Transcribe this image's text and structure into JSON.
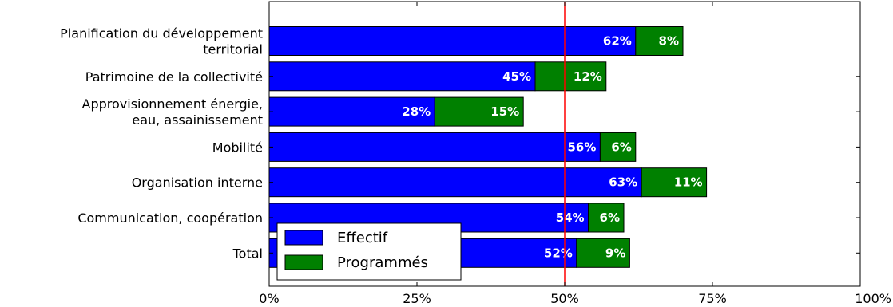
{
  "chart_data": {
    "type": "bar",
    "orientation": "horizontal",
    "stacked": true,
    "title": "",
    "xlabel": "",
    "ylabel": "",
    "xlim": [
      0,
      100
    ],
    "x_ticks": [
      "0%",
      "25%",
      "50%",
      "75%",
      "100%"
    ],
    "categories": [
      [
        "Planification du développement",
        "territorial"
      ],
      [
        "Patrimoine de la collectivité"
      ],
      [
        "Approvisionnement énergie,",
        "eau, assainissement"
      ],
      [
        "Mobilité"
      ],
      [
        "Organisation interne"
      ],
      [
        "Communication, coopération"
      ],
      [
        "Total"
      ]
    ],
    "series": [
      {
        "name": "Effectif",
        "color": "#0000ff",
        "values": [
          62,
          45,
          28,
          56,
          63,
          54,
          52
        ],
        "labels": [
          "62%",
          "45%",
          "28%",
          "56%",
          "63%",
          "54%",
          "52%"
        ]
      },
      {
        "name": "Programmés",
        "color": "#008000",
        "values": [
          8,
          12,
          15,
          6,
          11,
          6,
          9
        ],
        "labels": [
          "8%",
          "12%",
          "15%",
          "6%",
          "11%",
          "6%",
          "9%"
        ]
      }
    ],
    "reference_line": {
      "x": 50,
      "color": "#ff0000"
    },
    "legend_position": "lower-left",
    "grid": false
  }
}
